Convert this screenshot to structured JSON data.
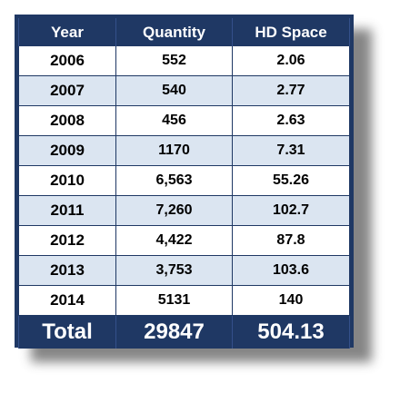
{
  "table": {
    "headers": [
      "Year",
      "Quantity",
      "HD Space"
    ],
    "rows": [
      [
        "2006",
        "552",
        "2.06"
      ],
      [
        "2007",
        "540",
        "2.77"
      ],
      [
        "2008",
        "456",
        "2.63"
      ],
      [
        "2009",
        "1170",
        "7.31"
      ],
      [
        "2010",
        "6,563",
        "55.26"
      ],
      [
        "2011",
        "7,260",
        "102.7"
      ],
      [
        "2012",
        "4,422",
        "87.8"
      ],
      [
        "2013",
        "3,753",
        "103.6"
      ],
      [
        "2014",
        "5131",
        "140"
      ]
    ],
    "total": [
      "Total",
      "29847",
      "504.13"
    ]
  },
  "colors": {
    "header_bg": "#1f3864",
    "header_text": "#ffffff",
    "row_alt_bg": "#dbe5f1",
    "row_bg": "#ffffff"
  }
}
